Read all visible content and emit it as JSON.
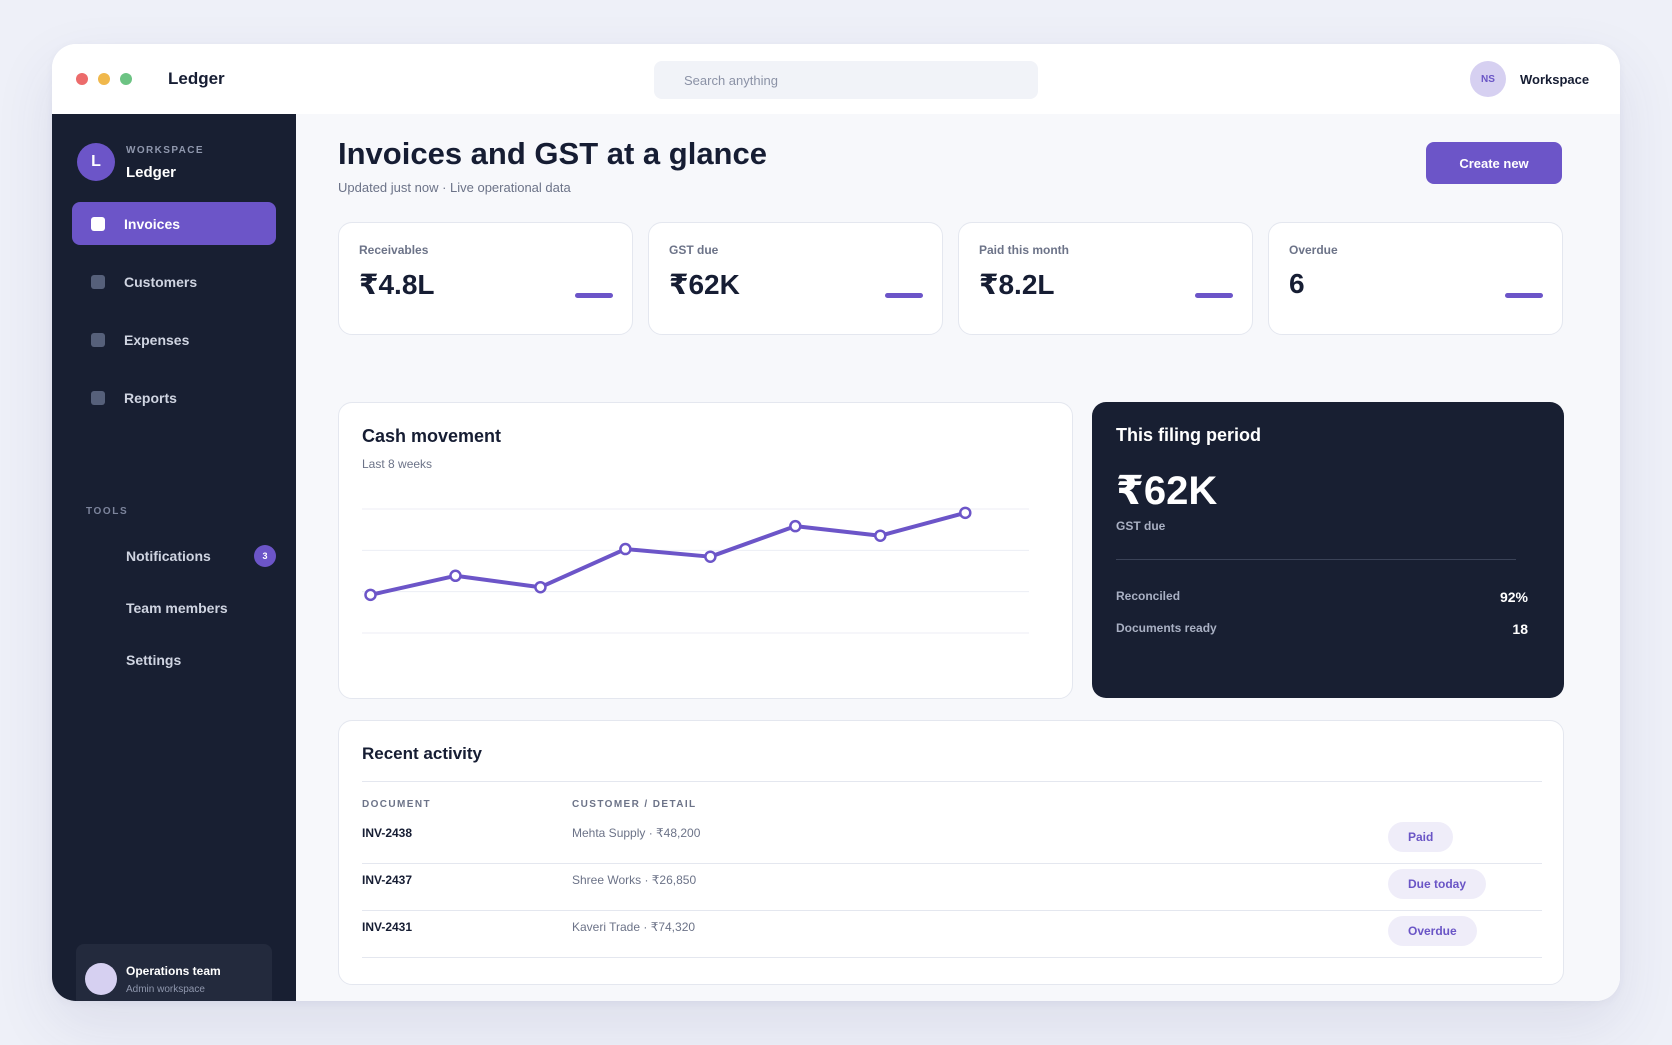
{
  "window": {
    "title": "Ledger",
    "search_placeholder": "Search anything",
    "user_initials": "NS",
    "workspace_label": "Workspace"
  },
  "sidebar": {
    "avatar_letter": "L",
    "kicker": "WORKSPACE",
    "name": "Ledger",
    "nav": [
      {
        "label": "Invoices",
        "active": true
      },
      {
        "label": "Customers",
        "active": false
      },
      {
        "label": "Expenses",
        "active": false
      },
      {
        "label": "Reports",
        "active": false
      }
    ],
    "tools_kicker": "TOOLS",
    "tools": [
      {
        "label": "Notifications",
        "badge": "3"
      },
      {
        "label": "Team members"
      },
      {
        "label": "Settings"
      }
    ],
    "team": {
      "name": "Operations team",
      "sub": "Admin workspace"
    }
  },
  "header": {
    "title": "Invoices and GST at a glance",
    "subtitle": "Updated just now · Live operational data",
    "create_label": "Create new"
  },
  "stats": [
    {
      "label": "Receivables",
      "value": "₹4.8L"
    },
    {
      "label": "GST due",
      "value": "₹62K"
    },
    {
      "label": "Paid this month",
      "value": "₹8.2L"
    },
    {
      "label": "Overdue",
      "value": "6"
    }
  ],
  "cash_card": {
    "title": "Cash movement",
    "subtitle": "Last 8 weeks"
  },
  "chart_data": {
    "type": "line",
    "title": "Cash movement",
    "subtitle": "Last 8 weeks",
    "x": [
      1,
      2,
      3,
      4,
      5,
      6,
      7,
      8
    ],
    "series": [
      {
        "values": [
          1.0,
          2.0,
          1.4,
          3.4,
          3.0,
          4.6,
          4.1,
          5.3
        ]
      }
    ],
    "ylim": [
      -1,
      5.5
    ],
    "grid": true,
    "color": "#6c55c8"
  },
  "filing": {
    "title": "This filing period",
    "amount": "₹62K",
    "caption": "GST due",
    "rows": [
      {
        "label": "Reconciled",
        "value": "92%"
      },
      {
        "label": "Documents ready",
        "value": "18"
      }
    ]
  },
  "activity": {
    "title": "Recent activity",
    "columns": [
      "DOCUMENT",
      "CUSTOMER / DETAIL"
    ],
    "rows": [
      {
        "doc": "INV-2438",
        "detail": "Mehta Supply · ₹48,200",
        "status": "Paid"
      },
      {
        "doc": "INV-2437",
        "detail": "Shree Works · ₹26,850",
        "status": "Due today"
      },
      {
        "doc": "INV-2431",
        "detail": "Kaveri Trade · ₹74,320",
        "status": "Overdue"
      }
    ]
  },
  "colors": {
    "accent": "#6c55c8",
    "sidebar": "#181f32",
    "background": "#f7f8fb"
  }
}
